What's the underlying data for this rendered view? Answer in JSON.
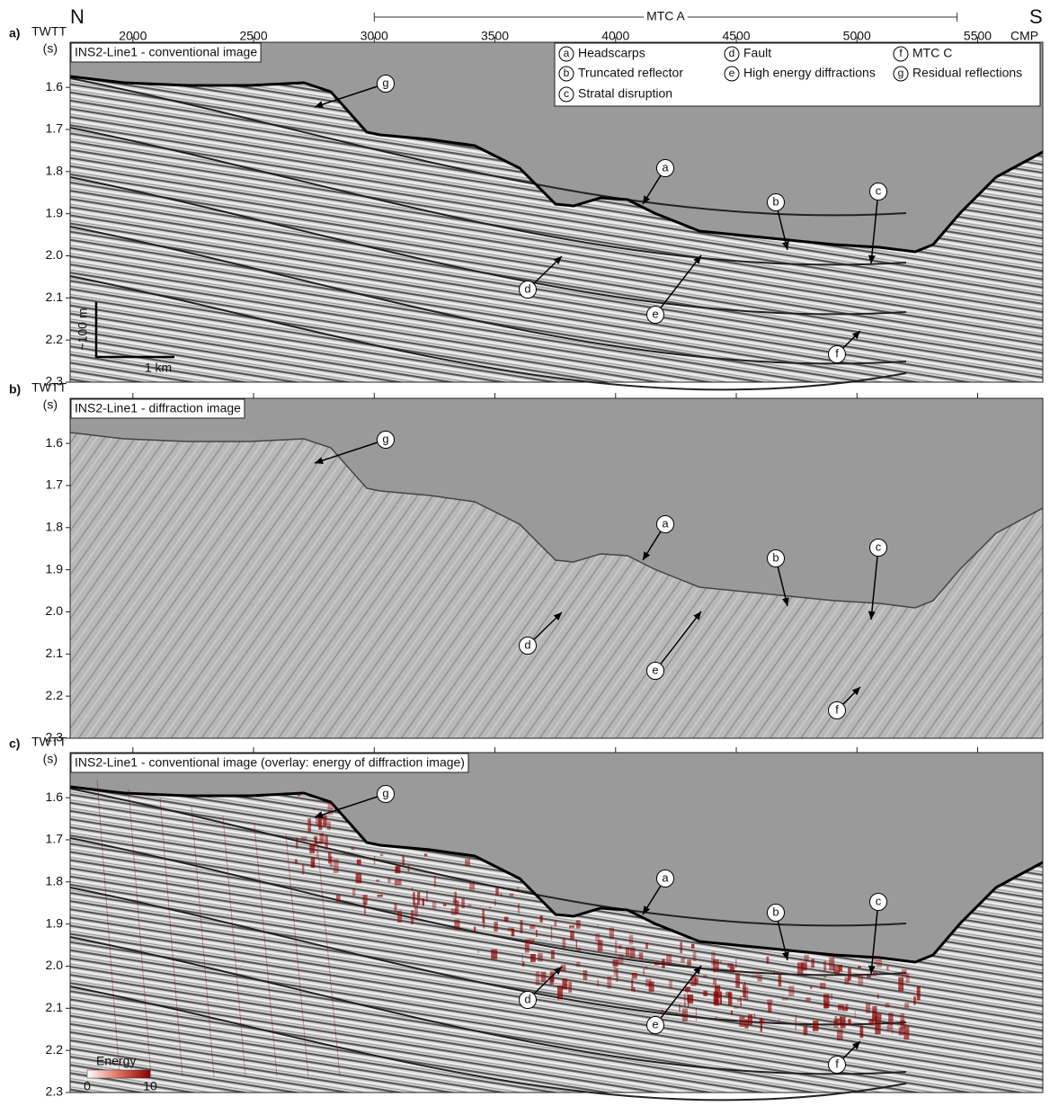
{
  "axis_top": {
    "north": "N",
    "south": "S",
    "unit": "CMP",
    "ticks": [
      2000,
      2500,
      3000,
      3500,
      4000,
      4500,
      5000,
      5500
    ],
    "range": [
      1740,
      5770
    ]
  },
  "mtc_a": {
    "label": "MTC A",
    "range": [
      3000,
      5415
    ]
  },
  "y_axis": {
    "label_1": "TWTT",
    "label_2": "(s)",
    "range": [
      1.493,
      2.3
    ],
    "ticks": [
      1.6,
      1.7,
      1.8,
      1.9,
      {
        "value": 2,
        "label": "2.0"
      },
      2.1,
      2.2,
      2.3
    ]
  },
  "legend": [
    {
      "key": "a",
      "text": "Headscarps"
    },
    {
      "key": "b",
      "text": "Truncated reflector"
    },
    {
      "key": "c",
      "text": "Stratal disruption"
    },
    {
      "key": "d",
      "text": "Fault"
    },
    {
      "key": "e",
      "text": "High energy diffractions"
    },
    {
      "key": "f",
      "text": "MTC C"
    },
    {
      "key": "g",
      "text": "Residual reflections"
    }
  ],
  "panels": [
    {
      "tag": "a)",
      "title": "INS2-Line1 - conventional image",
      "callouts": [
        "g",
        "a",
        "b",
        "c",
        "d",
        "e",
        "f"
      ]
    },
    {
      "tag": "b)",
      "title": "INS2-Line1 - diffraction image",
      "callouts": [
        "g",
        "a",
        "b",
        "c",
        "d",
        "e",
        "f"
      ]
    },
    {
      "tag": "c)",
      "title": "INS2-Line1 - conventional image (overlay: energy of diffraction image)",
      "callouts": [
        "g",
        "a",
        "b",
        "c",
        "d",
        "e",
        "f"
      ]
    }
  ],
  "scale_bar": {
    "vertical": "~100 m",
    "horizontal": "1 km"
  },
  "colorbar": {
    "title": "Energy",
    "min": 0,
    "max": 10
  }
}
